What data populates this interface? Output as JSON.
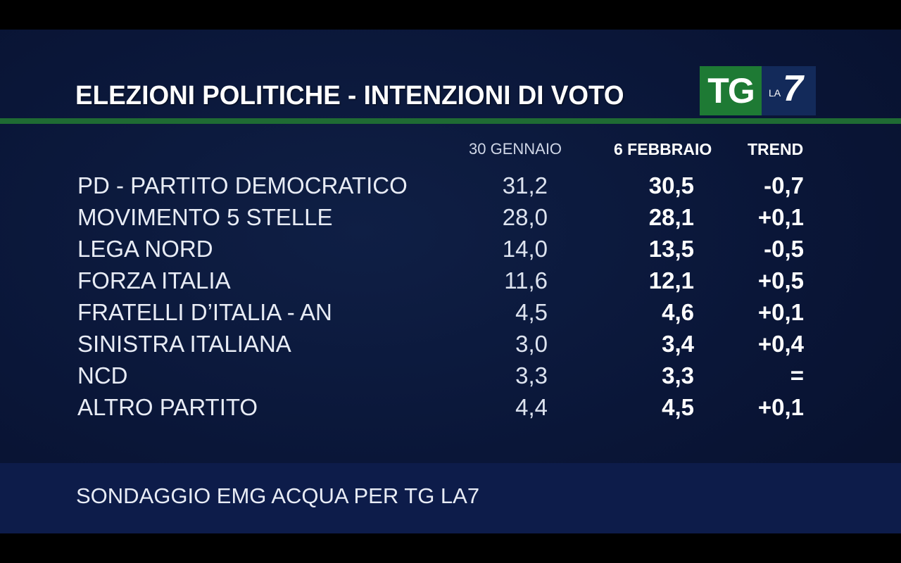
{
  "header": {
    "title": "ELEZIONI POLITICHE  -  INTENZIONI DI VOTO"
  },
  "logo": {
    "tg": "TG",
    "la": "LA",
    "seven": "7"
  },
  "chart_data": {
    "type": "table",
    "columns": [
      "30 GENNAIO",
      "6 FEBBRAIO",
      "TREND"
    ],
    "rows": [
      {
        "party": "PD - PARTITO DEMOCRATICO",
        "jan": "31,2",
        "feb": "30,5",
        "trend": "-0,7"
      },
      {
        "party": "MOVIMENTO 5 STELLE",
        "jan": "28,0",
        "feb": "28,1",
        "trend": "+0,1"
      },
      {
        "party": "LEGA NORD",
        "jan": "14,0",
        "feb": "13,5",
        "trend": "-0,5"
      },
      {
        "party": "FORZA ITALIA",
        "jan": "11,6",
        "feb": "12,1",
        "trend": "+0,5"
      },
      {
        "party": "FRATELLI D’ITALIA - AN",
        "jan": "4,5",
        "feb": "4,6",
        "trend": "+0,1"
      },
      {
        "party": "SINISTRA ITALIANA",
        "jan": "3,0",
        "feb": "3,4",
        "trend": "+0,4"
      },
      {
        "party": "NCD",
        "jan": "3,3",
        "feb": "3,3",
        "trend": "="
      },
      {
        "party": "ALTRO PARTITO",
        "jan": "4,4",
        "feb": "4,5",
        "trend": "+0,1"
      }
    ]
  },
  "footer": {
    "source": "SONDAGGIO EMG ACQUA PER TG LA7"
  },
  "colors": {
    "background": "#0a1638",
    "accent_green": "#1f6b33",
    "text": "#ffffff"
  }
}
